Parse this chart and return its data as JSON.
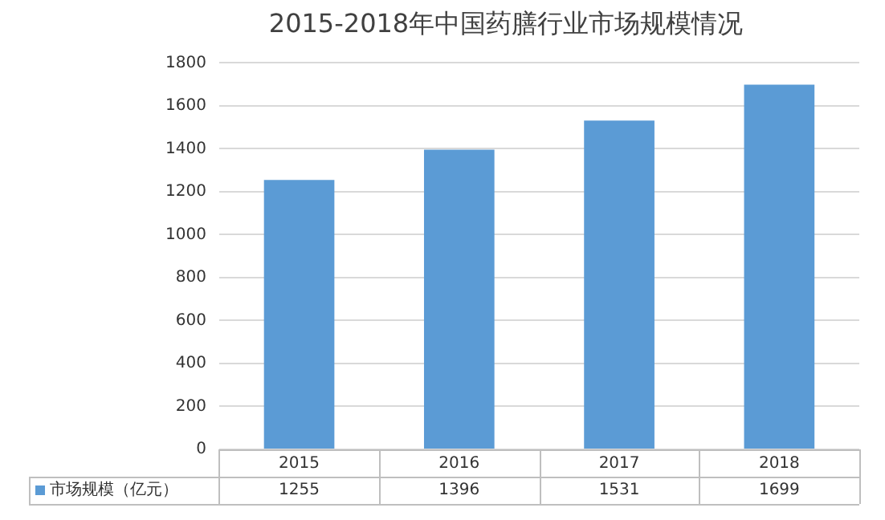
{
  "chart_data": {
    "type": "bar",
    "title": "2015-2018年中国药膳行业市场规模情况",
    "categories": [
      "2015",
      "2016",
      "2017",
      "2018"
    ],
    "series": [
      {
        "name": "市场规模（亿元）",
        "color": "#5b9bd5",
        "values": [
          1255,
          1396,
          1531,
          1699
        ]
      }
    ],
    "ylim": [
      0,
      1800
    ],
    "yticks": [
      0,
      200,
      400,
      600,
      800,
      1000,
      1200,
      1400,
      1600,
      1800
    ],
    "grid": "y",
    "legend": "bottom",
    "data_labels": true
  }
}
